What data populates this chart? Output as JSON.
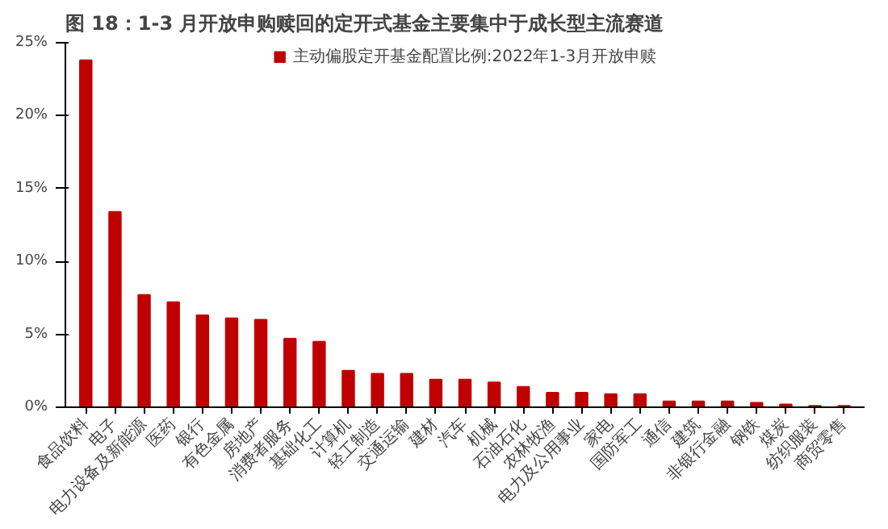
{
  "chart_data": {
    "type": "bar",
    "title": "图 18：1-3 月开放申购赎回的定开式基金主要集中于成长型主流赛道",
    "categories": [
      "食品饮料",
      "电子",
      "电力设备及新能源",
      "医药",
      "银行",
      "有色金属",
      "房地产",
      "消费者服务",
      "基础化工",
      "计算机",
      "轻工制造",
      "交通运输",
      "建材",
      "汽车",
      "机械",
      "石油石化",
      "农林牧渔",
      "电力及公用事业",
      "家电",
      "国防军工",
      "通信",
      "建筑",
      "非银行金融",
      "钢铁",
      "煤炭",
      "纺织服装",
      "商贸零售"
    ],
    "series": [
      {
        "name": "主动偏股定开基金配置比例:2022年1-3月开放申赎",
        "color": "#c00000",
        "values": [
          23.8,
          13.4,
          7.7,
          7.2,
          6.3,
          6.1,
          6.0,
          4.7,
          4.5,
          2.5,
          2.3,
          2.3,
          1.9,
          1.9,
          1.7,
          1.4,
          1.0,
          1.0,
          0.9,
          0.9,
          0.4,
          0.4,
          0.4,
          0.3,
          0.2,
          0.1,
          0.1
        ]
      }
    ],
    "ylim": [
      0,
      25
    ],
    "yticks": [
      {
        "value": 0,
        "label": "0%"
      },
      {
        "value": 5,
        "label": "5%"
      },
      {
        "value": 10,
        "label": "10%"
      },
      {
        "value": 15,
        "label": "15%"
      },
      {
        "value": 20,
        "label": "20%"
      },
      {
        "value": 25,
        "label": "25%"
      }
    ],
    "grid": false,
    "legend": "top"
  }
}
